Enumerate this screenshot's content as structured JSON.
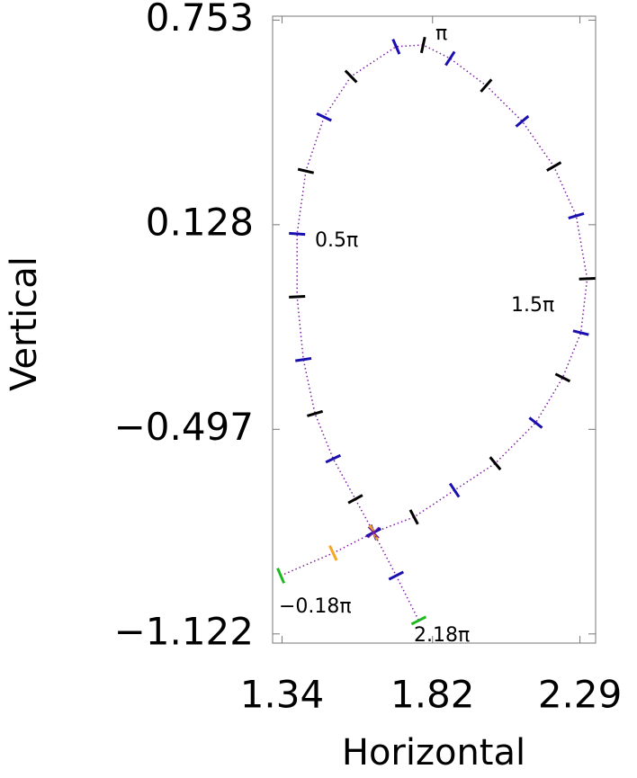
{
  "chart_data": {
    "type": "line",
    "x_label": "Horizontal",
    "y_label": "Vertical",
    "xlim": [
      1.31,
      2.34
    ],
    "xticks": [
      1.34,
      1.82,
      2.29
    ],
    "ylim": [
      -1.15,
      0.765
    ],
    "yticks": [
      0.753,
      0.128,
      {
        "value": -0.497,
        "label": "−0.497"
      },
      {
        "value": -1.122,
        "label": "−1.122"
      }
    ],
    "annotations": [
      "π",
      "0.5π",
      "1.5π",
      "−0.18π",
      "2.18π"
    ],
    "series": [
      {
        "color": "#7a1fa0",
        "marker_colors": [
          "#1a10b0",
          "#000000"
        ],
        "x": [
          1.632,
          1.574,
          1.503,
          1.445,
          1.408,
          1.388,
          1.388,
          1.416,
          1.474,
          1.56,
          1.704,
          1.79,
          1.876,
          1.991,
          2.106,
          2.207,
          2.278,
          2.313,
          2.293,
          2.235,
          2.149,
          2.02,
          1.89,
          1.761,
          1.632
        ],
        "values": [
          -0.812,
          -0.71,
          -0.587,
          -0.449,
          -0.284,
          -0.092,
          0.1,
          0.292,
          0.457,
          0.581,
          0.672,
          0.677,
          0.636,
          0.553,
          0.444,
          0.306,
          0.155,
          -0.037,
          -0.202,
          -0.339,
          -0.477,
          -0.601,
          -0.683,
          -0.765,
          -0.812
        ]
      },
      {
        "color": "#7a1fa0",
        "marker_colors": [
          "#f5a623",
          "#1fb81f"
        ],
        "x": [
          1.632,
          1.503,
          1.336
        ],
        "values": [
          -0.812,
          -0.875,
          -0.944
        ]
      },
      {
        "color": "#7a1fa0",
        "marker_colors": [
          "#1a10b0",
          "#1fb81f"
        ],
        "x": [
          1.632,
          1.704,
          1.776
        ],
        "values": [
          -0.812,
          -0.944,
          -1.081
        ]
      }
    ]
  }
}
